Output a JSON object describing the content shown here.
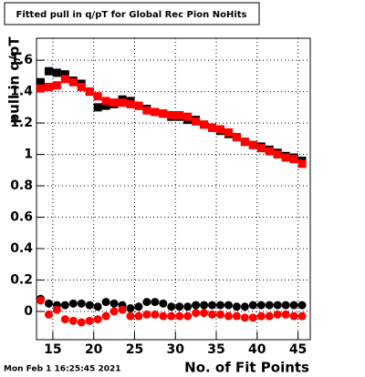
{
  "chart_data": {
    "type": "scatter",
    "title": "Fitted pull in q/pT for Global Rec Pion NoHits",
    "ylabel": "pull in q/pT",
    "xlabel": "No. of Fit Points",
    "timestamp": "Mon Feb  1 16:25:45 2021",
    "x": [
      13.5,
      14.5,
      15.5,
      16.5,
      17.5,
      18.5,
      19.5,
      20.5,
      21.5,
      22.5,
      23.5,
      24.5,
      25.5,
      26.5,
      27.5,
      28.5,
      29.5,
      30.5,
      31.5,
      32.5,
      33.5,
      34.5,
      35.5,
      36.5,
      37.5,
      38.5,
      39.5,
      40.5,
      41.5,
      42.5,
      43.5,
      44.5,
      45.5
    ],
    "series": [
      {
        "color": "#000000",
        "marker": "square",
        "values": [
          1.46,
          1.53,
          1.52,
          1.51,
          1.47,
          1.45,
          1.4,
          1.3,
          1.31,
          1.32,
          1.35,
          1.34,
          1.31,
          1.29,
          1.27,
          1.26,
          1.24,
          1.24,
          1.22,
          1.22,
          1.19,
          1.17,
          1.15,
          1.13,
          1.11,
          1.08,
          1.06,
          1.05,
          1.03,
          1.01,
          0.99,
          0.98,
          0.96
        ]
      },
      {
        "color": "#ff0000",
        "marker": "square",
        "values": [
          1.42,
          1.43,
          1.44,
          1.48,
          1.46,
          1.43,
          1.4,
          1.37,
          1.34,
          1.33,
          1.33,
          1.32,
          1.31,
          1.28,
          1.27,
          1.26,
          1.25,
          1.25,
          1.24,
          1.21,
          1.19,
          1.17,
          1.16,
          1.14,
          1.11,
          1.08,
          1.06,
          1.04,
          1.02,
          1.0,
          0.98,
          0.97,
          0.94
        ]
      },
      {
        "color": "#000000",
        "marker": "circle",
        "values": [
          0.08,
          0.05,
          0.04,
          0.04,
          0.05,
          0.05,
          0.04,
          0.03,
          0.06,
          0.05,
          0.04,
          0.02,
          0.03,
          0.06,
          0.06,
          0.05,
          0.03,
          0.03,
          0.03,
          0.04,
          0.04,
          0.04,
          0.04,
          0.04,
          0.03,
          0.03,
          0.04,
          0.04,
          0.04,
          0.04,
          0.04,
          0.04,
          0.04
        ]
      },
      {
        "color": "#ff0000",
        "marker": "circle",
        "values": [
          0.07,
          -0.02,
          0.01,
          -0.05,
          -0.06,
          -0.07,
          -0.06,
          -0.05,
          -0.03,
          0,
          0.01,
          -0.03,
          -0.03,
          -0.02,
          -0.02,
          -0.03,
          -0.03,
          -0.03,
          -0.03,
          -0.01,
          -0.01,
          -0.02,
          -0.02,
          -0.03,
          -0.03,
          -0.04,
          -0.04,
          -0.03,
          -0.03,
          -0.02,
          -0.02,
          -0.03,
          -0.03
        ]
      }
    ],
    "xlim": [
      13,
      46.5
    ],
    "ylim": [
      -0.18,
      1.74
    ],
    "xticks": [
      15,
      20,
      25,
      30,
      35,
      40,
      45
    ],
    "yticks": [
      0,
      0.2,
      0.4,
      0.6,
      0.8,
      1,
      1.2,
      1.4,
      1.6
    ],
    "grid": true
  }
}
